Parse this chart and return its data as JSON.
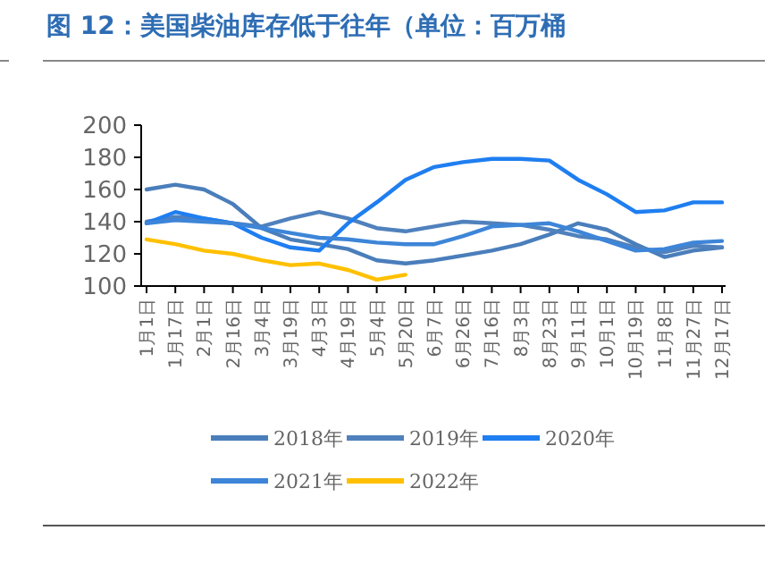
{
  "chart_data": {
    "type": "line",
    "title": "图 12：美国柴油库存低于往年（单位：百万桶",
    "categories": [
      "1月1日",
      "1月17日",
      "2月1日",
      "2月16日",
      "3月4日",
      "3月19日",
      "4月3日",
      "4月19日",
      "5月4日",
      "5月20日",
      "6月7日",
      "6月26日",
      "7月16日",
      "8月3日",
      "8月23日",
      "9月11日",
      "10月1日",
      "10月19日",
      "11月8日",
      "11月27日",
      "12月17日"
    ],
    "series": [
      {
        "name": "2018年",
        "color": "#4a7ebb",
        "values": [
          160,
          163,
          160,
          151,
          136,
          129,
          126,
          123,
          116,
          114,
          116,
          119,
          122,
          126,
          132,
          139,
          135,
          126,
          118,
          122,
          124
        ]
      },
      {
        "name": "2019年",
        "color": "#4f81bd",
        "values": [
          140,
          143,
          142,
          139,
          137,
          142,
          146,
          142,
          136,
          134,
          137,
          140,
          139,
          138,
          135,
          131,
          129,
          124,
          121,
          125,
          124
        ]
      },
      {
        "name": "2020年",
        "color": "#1f7ef0",
        "values": [
          139,
          146,
          142,
          139,
          130,
          124,
          122,
          139,
          152,
          166,
          174,
          177,
          179,
          179,
          178,
          166,
          157,
          146,
          147,
          152,
          152
        ]
      },
      {
        "name": "2021年",
        "color": "#3d85d8",
        "values": [
          139,
          141,
          140,
          139,
          136,
          133,
          130,
          129,
          127,
          126,
          126,
          131,
          137,
          138,
          139,
          134,
          128,
          122,
          123,
          127,
          128
        ]
      },
      {
        "name": "2022年",
        "color": "#ffc000",
        "values": [
          129,
          126,
          122,
          120,
          116,
          113,
          114,
          110,
          104,
          107,
          null,
          null,
          null,
          null,
          null,
          null,
          null,
          null,
          null,
          null,
          null
        ]
      }
    ],
    "ylim": [
      100,
      200
    ],
    "yticks": [
      100,
      120,
      140,
      160,
      180,
      200
    ],
    "legend": "bottom",
    "grid": false
  }
}
